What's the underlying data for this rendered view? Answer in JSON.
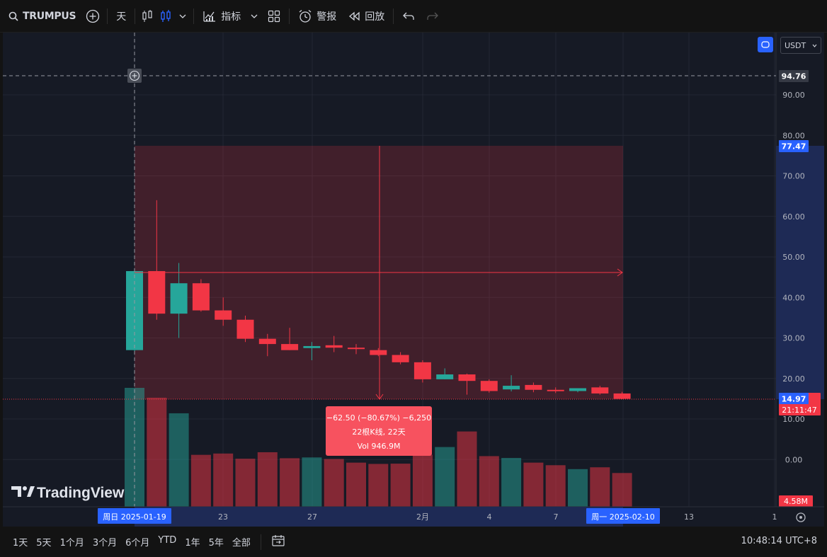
{
  "toolbar": {
    "symbol": "TRUMPUS",
    "interval": "天",
    "indicators_label": "指标",
    "alert_label": "警报",
    "replay_label": "回放"
  },
  "currency": "USDT",
  "price_axis": {
    "ticks": [
      "90.00",
      "80.00",
      "70.00",
      "60.00",
      "50.00",
      "40.00",
      "30.00",
      "20.00",
      "10.00",
      "0.00"
    ],
    "crosshair_price": "94.76",
    "measure_top": "77.47",
    "last_price": "14.97",
    "countdown": "21:11:47",
    "volume_label": "4.58M"
  },
  "time_axis": {
    "ticks": [
      "23",
      "27",
      "2月",
      "4",
      "7",
      "13",
      "1"
    ],
    "start_label": "周日 2025-01-19",
    "end_label": "周一 2025-02-10"
  },
  "measure_tooltip": {
    "line1": "−62.50 (−80.67%) −6,250",
    "line2": "22根K线, 22天",
    "line3": "Vol 946.9M"
  },
  "brand": "TradingView",
  "bottombar": {
    "ranges": [
      "1天",
      "5天",
      "1个月",
      "3个月",
      "6个月",
      "YTD",
      "1年",
      "5年",
      "全部"
    ],
    "clock": "10:48:14 UTC+8"
  },
  "colors": {
    "up": "#26a69a",
    "down": "#f23645",
    "background": "#161a25",
    "measure_fill": "#f2364533",
    "accent": "#2962ff"
  },
  "chart_data": {
    "type": "candlestick",
    "ylim": [
      0,
      95
    ],
    "series": [
      {
        "name": "candles",
        "x": [
          "2025-01-19",
          "2025-01-20",
          "2025-01-21",
          "2025-01-22",
          "2025-01-23",
          "2025-01-24",
          "2025-01-25",
          "2025-01-26",
          "2025-01-27",
          "2025-01-28",
          "2025-01-29",
          "2025-01-30",
          "2025-01-31",
          "2025-02-01",
          "2025-02-02",
          "2025-02-03",
          "2025-02-04",
          "2025-02-05",
          "2025-02-06",
          "2025-02-07",
          "2025-02-08",
          "2025-02-09",
          "2025-02-10"
        ],
        "open": [
          27.0,
          46.5,
          36.0,
          43.5,
          36.8,
          34.5,
          29.8,
          28.5,
          27.5,
          28.2,
          27.6,
          27.0,
          25.8,
          24.0,
          19.8,
          21.0,
          19.4,
          17.3,
          18.4,
          17.2,
          16.9,
          17.8,
          16.3
        ],
        "high": [
          46.5,
          64.0,
          48.5,
          44.5,
          40.0,
          35.5,
          31.0,
          32.5,
          29.0,
          30.5,
          28.5,
          27.5,
          26.5,
          24.5,
          22.5,
          21.2,
          19.8,
          20.8,
          19.0,
          17.8,
          17.4,
          18.2,
          16.7
        ],
        "close": [
          46.5,
          36.0,
          43.5,
          36.8,
          34.5,
          29.8,
          28.5,
          27.0,
          28.0,
          27.6,
          27.4,
          25.8,
          24.0,
          19.8,
          21.0,
          19.4,
          16.9,
          18.2,
          17.2,
          16.9,
          17.6,
          16.3,
          14.97
        ],
        "low": [
          26.5,
          34.5,
          30.0,
          36.5,
          33.0,
          29.0,
          25.5,
          27.0,
          24.5,
          26.5,
          26.0,
          25.5,
          23.5,
          19.0,
          19.8,
          16.0,
          16.5,
          16.8,
          16.6,
          16.4,
          16.6,
          16.0,
          14.9
        ]
      },
      {
        "name": "volume",
        "values": [
          4.58,
          4.2,
          3.6,
          2.0,
          2.05,
          1.85,
          2.1,
          1.87,
          1.9,
          1.84,
          1.7,
          1.65,
          1.66,
          2.0,
          2.3,
          2.9,
          1.95,
          1.88,
          1.7,
          1.6,
          1.45,
          1.52,
          1.3
        ]
      }
    ]
  }
}
